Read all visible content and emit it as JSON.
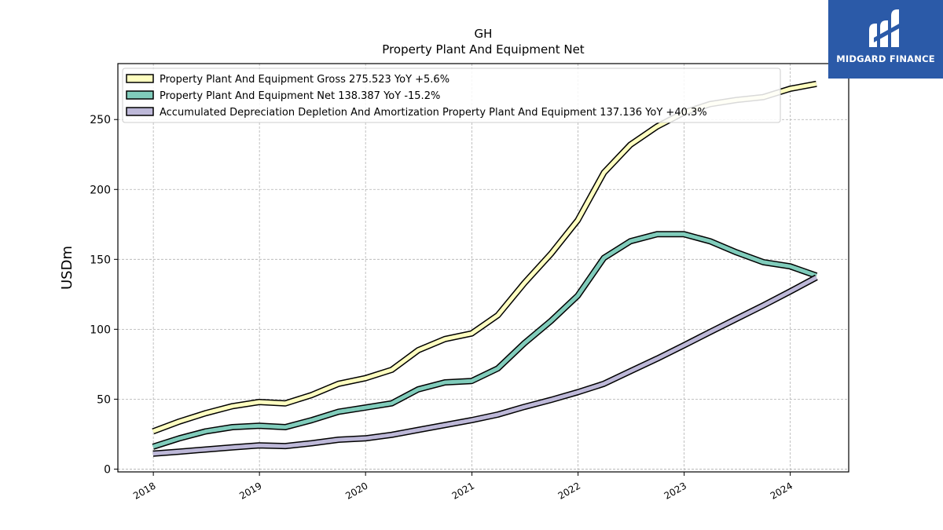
{
  "chart_data": {
    "type": "line",
    "title": "GH",
    "subtitle": "Property Plant And Equipment Net",
    "ylabel": "USDm",
    "xlabel": "",
    "xlim": [
      "2017-09-01",
      "2024-07-20"
    ],
    "ylim": [
      -2,
      290
    ],
    "y_ticks": [
      0,
      50,
      100,
      150,
      200,
      250
    ],
    "x_ticks": [
      "2018",
      "2019",
      "2020",
      "2021",
      "2022",
      "2023",
      "2024"
    ],
    "grid": true,
    "legend_position": "top-left",
    "dates": [
      "2017-12-31",
      "2018-03-31",
      "2018-06-30",
      "2018-09-30",
      "2018-12-31",
      "2019-03-31",
      "2019-06-30",
      "2019-09-30",
      "2019-12-31",
      "2020-03-31",
      "2020-06-30",
      "2020-09-30",
      "2020-12-31",
      "2021-03-31",
      "2021-06-30",
      "2021-09-30",
      "2021-12-31",
      "2022-03-31",
      "2022-06-30",
      "2022-09-30",
      "2022-12-31",
      "2023-03-31",
      "2023-06-30",
      "2023-09-30",
      "2023-12-31",
      "2024-03-31"
    ],
    "series": [
      {
        "name": "Property Plant And Equipment Gross",
        "legend": "Property Plant And Equipment Gross  275.523 YoY +5.6%",
        "color": "#ffffc0",
        "values": [
          27,
          34,
          40,
          45,
          48,
          47,
          53,
          61,
          65,
          71,
          85,
          93,
          97,
          110,
          133,
          154,
          178,
          212,
          232,
          245,
          255,
          261,
          264,
          266,
          272,
          275.5
        ]
      },
      {
        "name": "Property Plant And Equipment Net",
        "legend": "Property Plant And Equipment Net  138.387 YoY -15.2%",
        "color": "#80ccbb",
        "values": [
          16,
          22,
          27,
          30,
          31,
          30,
          35,
          41,
          44,
          47,
          57,
          62,
          63,
          72,
          90,
          106,
          124,
          151,
          163,
          168,
          168,
          163,
          155,
          148,
          145,
          138.4
        ]
      },
      {
        "name": "Accumulated Depreciation Depletion And Amortization Property Plant And Equipment",
        "legend": "Accumulated Depreciation Depletion And Amortization Property Plant And Equipment  137.136 YoY +40.3%",
        "color": "#bdb8d8",
        "values": [
          11,
          12.5,
          14,
          15.5,
          17,
          16.5,
          18.5,
          21,
          22,
          24.5,
          28,
          31.5,
          35,
          39,
          44.5,
          49.5,
          55,
          61,
          70,
          79,
          88.5,
          98,
          107.5,
          117,
          127,
          137.1
        ]
      }
    ]
  },
  "logo": {
    "text": "MIDGARD FINANCE",
    "background": "#2b5aa8"
  }
}
